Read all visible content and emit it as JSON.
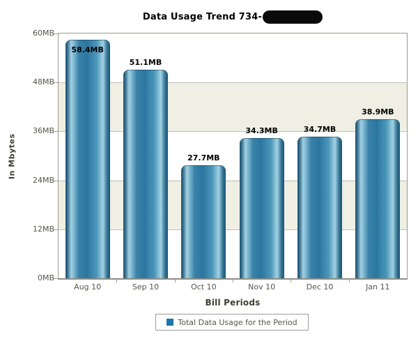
{
  "chart_data": {
    "type": "bar",
    "title": "Data Usage Trend 734-",
    "title_suffix_redacted": true,
    "categories": [
      "Aug 10",
      "Sep 10",
      "Oct 10",
      "Nov 10",
      "Dec 10",
      "Jan 11"
    ],
    "values": [
      58.4,
      51.1,
      27.7,
      34.3,
      34.7,
      38.9
    ],
    "value_labels": [
      "58.4MB",
      "51.1MB",
      "27.7MB",
      "34.3MB",
      "34.7MB",
      "38.9MB"
    ],
    "xlabel": "Bill Periods",
    "ylabel": "In Mbytes",
    "ylim": [
      0,
      60
    ],
    "ytick_step": 12,
    "ytick_labels": [
      "0MB",
      "12MB",
      "24MB",
      "36MB",
      "48MB",
      "60MB"
    ],
    "grid": true,
    "plot_bands_alternating": true,
    "legend_position": "bottom",
    "legend": {
      "items": [
        {
          "label": "Total Data Usage for the Period",
          "swatch_color": "#1a77a8"
        }
      ]
    },
    "colors": {
      "bar_main": "#2b76a0",
      "bar_highlight": "#a2d2e3",
      "bar_edge_dark": "#235d7c",
      "band_alt": "#f0efe4",
      "gridline": "#c0c0b6",
      "plot_border": "#9a9a90",
      "axis_line": "#8e8e84",
      "tick_text": "#55554a",
      "axis_title_text": "#3e3e33",
      "value_text": "#000000",
      "title_text": "#000000"
    }
  }
}
